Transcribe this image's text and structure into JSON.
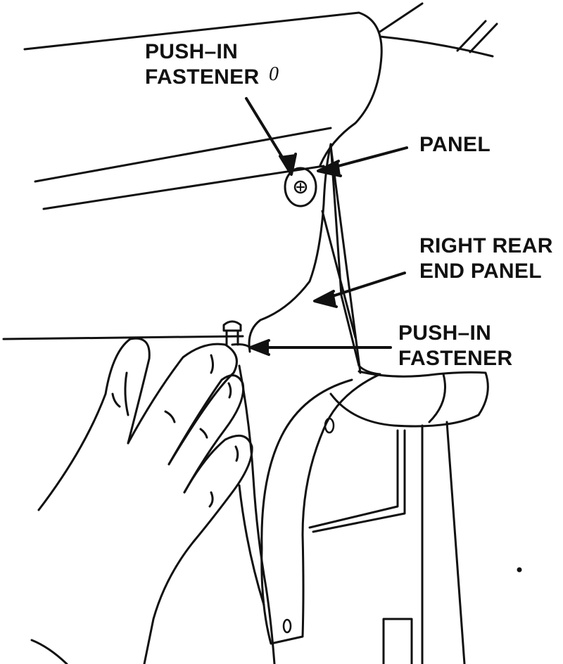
{
  "labels": {
    "push_in_fastener_top": [
      "PUSH–IN",
      "FASTENER"
    ],
    "stray_mark": "0",
    "panel": "PANEL",
    "right_rear_end_panel": [
      "RIGHT REAR",
      "END PANEL"
    ],
    "push_in_fastener_bottom": [
      "PUSH–IN",
      "FASTENER"
    ]
  },
  "colors": {
    "ink": "#111111",
    "paper": "#ffffff"
  }
}
